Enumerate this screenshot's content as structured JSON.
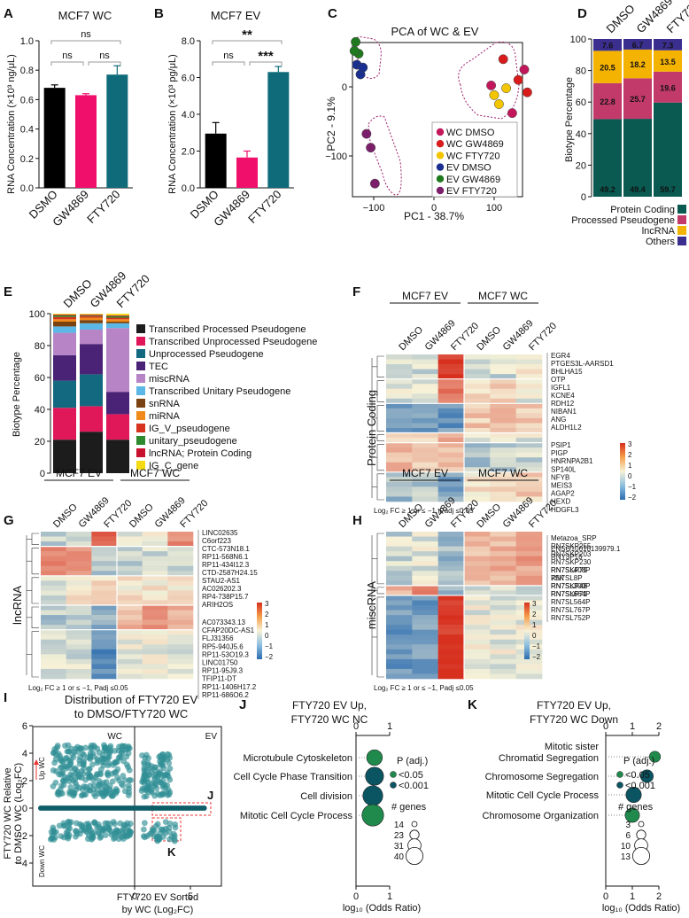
{
  "colors": {
    "black": "#000000",
    "magenta": "#f0106c",
    "teal": "#0f6b7a",
    "protein": "#0a5a52",
    "pseudo": "#c23a6a",
    "lncrna": "#f5b301",
    "others": "#3a2f8f",
    "wc_dmso": "#c2185b",
    "wc_gw": "#d81b1b",
    "wc_fty": "#f2c500",
    "ev_dmso": "#1a2f8f",
    "ev_gw": "#1f7a1f",
    "ev_fty": "#7b1f6a",
    "hm_low": "#3a7ab8",
    "hm_mid": "#f4f1e0",
    "hm_high": "#e8562a"
  },
  "chart_data": [
    {
      "panel": "A",
      "type": "bar",
      "title": "MCF7 WC",
      "categories": [
        "DSMO",
        "GW4869",
        "FTY720"
      ],
      "values": [
        0.68,
        0.63,
        0.77
      ],
      "errors": [
        0.02,
        0.01,
        0.06
      ],
      "ylabel": "RNA Concentration (×10³ ng/μL)",
      "ylim": [
        0,
        1.0
      ],
      "yticks": [
        "0.0",
        "0.2",
        "0.4",
        "0.6",
        "0.8",
        "1.0"
      ],
      "significance": [
        "ns",
        "ns",
        "ns"
      ]
    },
    {
      "panel": "B",
      "type": "bar",
      "title": "MCF7 EV",
      "categories": [
        "DSMO",
        "GW4869",
        "FTY720"
      ],
      "values": [
        2.95,
        1.65,
        6.3
      ],
      "errors": [
        0.6,
        0.35,
        0.3
      ],
      "ylabel": "RNA Concentration (×10³ pg/μL)",
      "ylim": [
        0,
        8
      ],
      "yticks": [
        "0.0",
        "2.0",
        "4.0",
        "6.0",
        "8.0"
      ],
      "significance": [
        "ns",
        "***",
        "**"
      ]
    },
    {
      "panel": "C",
      "type": "scatter",
      "title": "PCA of WC & EV",
      "xlabel": "PC1 - 38.7%",
      "ylabel": "PC2 - 9.1%",
      "xticks": [
        "−100",
        "0",
        "100"
      ],
      "yticks": [
        "0",
        "−100"
      ],
      "legend": [
        "WC DMSO",
        "WC GW4869",
        "WC FTY720",
        "EV DMSO",
        "EV GW4869",
        "EV FTY720"
      ],
      "points": [
        {
          "g": 1,
          "x": 95,
          "y": 2
        },
        {
          "g": 1,
          "x": 150,
          "y": 25
        },
        {
          "g": 1,
          "x": 130,
          "y": -38
        },
        {
          "g": 2,
          "x": 115,
          "y": 40
        },
        {
          "g": 2,
          "x": 155,
          "y": -8
        },
        {
          "g": 2,
          "x": 140,
          "y": 10
        },
        {
          "g": 3,
          "x": 100,
          "y": -12
        },
        {
          "g": 3,
          "x": 120,
          "y": -2
        },
        {
          "g": 3,
          "x": 108,
          "y": -25
        },
        {
          "g": 4,
          "x": -128,
          "y": 32
        },
        {
          "g": 4,
          "x": -122,
          "y": 18
        },
        {
          "g": 4,
          "x": -118,
          "y": 28
        },
        {
          "g": 5,
          "x": -130,
          "y": 65
        },
        {
          "g": 5,
          "x": -125,
          "y": 48
        },
        {
          "g": 5,
          "x": -132,
          "y": 52
        },
        {
          "g": 6,
          "x": -112,
          "y": -68
        },
        {
          "g": 6,
          "x": -105,
          "y": -88
        },
        {
          "g": 6,
          "x": -98,
          "y": -140
        }
      ]
    },
    {
      "panel": "D",
      "type": "bar",
      "stacked": true,
      "categories": [
        "DMSO",
        "GW4869",
        "FTY720"
      ],
      "ylabel": "Biotype Percentage",
      "ylim": [
        0,
        100
      ],
      "yticks": [
        "0",
        "20",
        "40",
        "60",
        "80",
        "100"
      ],
      "series": [
        {
          "name": "Protein Coding",
          "values": [
            49.2,
            49.4,
            59.7
          ]
        },
        {
          "name": "Processed Pseudogene",
          "values": [
            22.8,
            25.7,
            19.6
          ]
        },
        {
          "name": "lncRNA",
          "values": [
            20.5,
            18.2,
            13.5
          ]
        },
        {
          "name": "Others",
          "values": [
            7.6,
            6.7,
            7.3
          ]
        }
      ]
    },
    {
      "panel": "E",
      "type": "bar",
      "stacked": true,
      "categories": [
        "DMSO",
        "GW4869",
        "FTY720"
      ],
      "ylabel": "Biotype Percentage",
      "ylim": [
        0,
        100
      ],
      "yticks": [
        "0",
        "20",
        "40",
        "60",
        "80",
        "100"
      ],
      "series": [
        {
          "name": "Transcribed Processed Pseudogene",
          "color": "#1c1c1c",
          "values": [
            21,
            26,
            21
          ]
        },
        {
          "name": "Transcribed Unprocessed Pseudogene",
          "color": "#e0185a",
          "values": [
            20,
            16,
            16
          ]
        },
        {
          "name": "Unprocessed Pseudogene",
          "color": "#136a80",
          "values": [
            17,
            20,
            0
          ]
        },
        {
          "name": "TEC",
          "color": "#4a2377",
          "values": [
            16,
            19,
            14
          ]
        },
        {
          "name": "miscRNA",
          "color": "#b784c6",
          "values": [
            14,
            9,
            40
          ]
        },
        {
          "name": "Transcribed Unitary Pseudogene",
          "color": "#5bb8e6",
          "values": [
            4,
            4,
            3
          ]
        },
        {
          "name": "snRNA",
          "color": "#7a4210",
          "values": [
            3,
            2,
            1
          ]
        },
        {
          "name": "miRNA",
          "color": "#f08a1a",
          "values": [
            1.5,
            1.5,
            1.5
          ]
        },
        {
          "name": "IG_V_pseudogene",
          "color": "#d6341f",
          "values": [
            1.5,
            1,
            1
          ]
        },
        {
          "name": "unitary_pseudogene",
          "color": "#2e8a2e",
          "values": [
            1,
            0.5,
            1
          ]
        },
        {
          "name": "lncRNA; Protein Coding",
          "color": "#c9102e",
          "values": [
            0.5,
            0.5,
            0.5
          ]
        },
        {
          "name": "IG_C_gene",
          "color": "#f5dc12",
          "values": [
            0.5,
            0.5,
            1
          ]
        }
      ]
    },
    {
      "panel": "I",
      "type": "scatter",
      "title": "Distribution of FTY720 EV to DMSO/FTY720 WC",
      "xlabel": "FTY720 EV Sorted by WC (Log₂FC)",
      "ylabel": "FTY720 WC Relative to DMSO WC (Log₂FC)",
      "xticks": [
        "0",
        "5"
      ],
      "yticks": [
        "6",
        "4",
        "2",
        "0",
        "−2",
        "−4"
      ],
      "regions": [
        "WC",
        "EV"
      ],
      "annotations": [
        "Up WC",
        "Down WC",
        "J",
        "K"
      ]
    },
    {
      "panel": "J",
      "type": "scatter",
      "title": "FTY720 EV Up, FTY720 WC NC",
      "xlabel": "log₁₀ (Odds Ratio)",
      "xticks": [
        "0",
        "1"
      ],
      "terms": [
        "Microtubule Cytoskeleton",
        "Cell Cycle Phase Transition",
        "Cell division",
        "Mitotic Cell Cycle Process"
      ],
      "odds_log10": [
        0.55,
        0.55,
        0.5,
        0.5
      ],
      "genes": [
        14,
        23,
        31,
        40
      ],
      "padj": [
        "<0.05",
        "<0.001",
        "<0.001",
        "<0.05"
      ],
      "legend_padj": [
        "<0.05",
        "<0.001"
      ],
      "legend_genes": [
        "14",
        "23",
        "31",
        "40"
      ]
    },
    {
      "panel": "K",
      "type": "scatter",
      "title": "FTY720 EV Up, FTY720 WC Down",
      "xlabel": "log₁₀ (Odds Ratio)",
      "xticks": [
        "0",
        "1",
        "2"
      ],
      "terms": [
        "Mitotic sister Chromatid Segregation",
        "Chromosome Segregation",
        "Mitotic Cell Cycle Process",
        "Chromosome Organization"
      ],
      "odds_log10": [
        1.85,
        1.55,
        1.05,
        1.0
      ],
      "genes": [
        3,
        6,
        13,
        10
      ],
      "padj": [
        "<0.05",
        "<0.001",
        "<0.001",
        "<0.05"
      ],
      "legend_padj": [
        "<0.05",
        "<0.001"
      ],
      "legend_genes": [
        "3",
        "6",
        "10",
        "13"
      ]
    }
  ],
  "labels": {
    "A": "A",
    "B": "B",
    "C": "C",
    "D": "D",
    "E": "E",
    "F": "F",
    "G": "G",
    "H": "H",
    "I": "I",
    "J": "J",
    "K": "K",
    "sig_ns": "ns",
    "sig_2": "**",
    "sig_3": "***",
    "mcf7ev": "MCF7 EV",
    "mcf7wc": "MCF7 WC",
    "padj": "P (adj.)",
    "ngenes": "# genes",
    "footnote": "Log₂ FC ≥ 1 or ≤ −1, Padj ≤0.05",
    "i_title1": "Distribution of FTY720 EV",
    "i_title2": "to DMSO/FTY720 WC",
    "i_ylabel1": "FTY720 WC Relative",
    "i_ylabel2": "to DMSO WC (Log₂FC)",
    "i_xlabel1": "FTY720 EV Sorted",
    "i_xlabel2": "by WC (Log₂FC)",
    "j_title1": "FTY720 EV Up,",
    "j_title2": "FTY720 WC NC",
    "k_title1": "FTY720 EV Up,",
    "k_title2": "FTY720 WC Down",
    "odds": "log₁₀ (Odds Ratio)",
    "k_term0a": "Mitotic sister",
    "k_term0b": "Chromatid Segregation"
  },
  "heatmaps": {
    "cols": [
      "DMSO",
      "GW4869",
      "FTY720",
      "DMSO",
      "GW4869",
      "FTY720"
    ],
    "scale": [
      "3",
      "2",
      "1",
      "0",
      "−1",
      "−2"
    ],
    "F": {
      "row_label": "Protein Coding",
      "genes": [
        "EGR4",
        "PTGES3L-AARSD1",
        "BHLHA15",
        "OTP",
        "IGFL1",
        "KCNE4",
        "RDH12",
        "NIBAN1",
        "ANG",
        "ALDH1L2",
        "PSIP1",
        "PIGP",
        "HNRNPA2B1",
        "SP140L",
        "NFYB",
        "MEIS3",
        "AGAP2",
        "HEXD",
        "HDGFL3"
      ]
    },
    "G": {
      "row_label": "lncRNA",
      "genes": [
        "LINC02635",
        "C6orf223",
        "CTC-573N18.1",
        "RP11-568N6.1",
        "RP11-434I12.3",
        "CTD-2587H24.15",
        "STAU2-AS1",
        "AC026202.3",
        "RP4-738P15.7",
        "ARIH2OS",
        "AC073343.13",
        "CFAP20DC-AS1",
        "FLJ31356",
        "RP5-940J5.6",
        "RP11-53O19.3",
        "LINC01750",
        "RP11-95J9.3",
        "TFIP11-DT",
        "RP11-1406H17.2",
        "RP11-686O6.2"
      ]
    },
    "H": {
      "row_label": "miscRNA",
      "genes": [
        "Metazoa_SRP",
        "RN7SKP255",
        "RN7SKP203",
        "RN7SKP230",
        "RN7SKP79",
        "7SK",
        "RN7SKP48",
        "RN7SKP71",
        "ENSG10010139979.1",
        "RNY3P16",
        "RN7SL408P",
        "RN7SL8P",
        "RN7SL300P",
        "RN7SL664P",
        "RN7SL564P",
        "RN7SL767P",
        "RN7SL752P"
      ]
    }
  }
}
